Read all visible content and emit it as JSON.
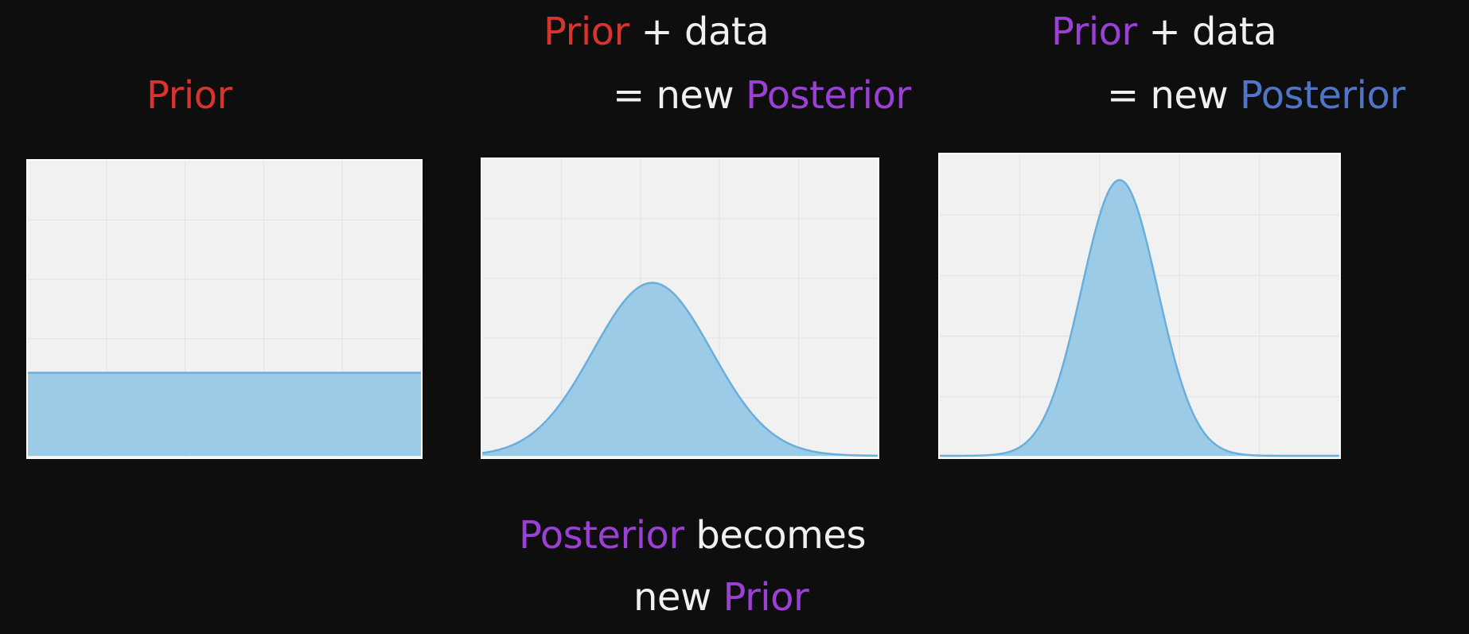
{
  "colors": {
    "prior_red": "#d8332e",
    "posterior_purple": "#9b3fd6",
    "posterior_blue": "#4f74c8",
    "text_white": "#f0f0f0",
    "background": "#0e0e0e",
    "panel_bg": "#f1f1f1",
    "fill": "#9ccbe8",
    "stroke": "#6aaedb"
  },
  "captions": {
    "prior_label": "Prior",
    "step2": {
      "prior_word": "Prior",
      "plus_data": " + data",
      "equals_new": "= new ",
      "posterior_word": "Posterior"
    },
    "step3": {
      "prior_word": "Prior",
      "plus_data": " + data",
      "equals_new": "= new ",
      "posterior_word": "Posterior"
    },
    "bottom": {
      "posterior_word": "Posterior",
      "becomes": " becomes",
      "new": "new ",
      "prior_word": "Prior"
    }
  },
  "chart_data": [
    {
      "type": "area",
      "shape": "uniform",
      "level": 0.28,
      "grid": true,
      "title": "",
      "xlabel": "",
      "ylabel": ""
    },
    {
      "type": "area",
      "shape": "gaussian",
      "mean": 0.43,
      "sd": 0.15,
      "peak": 0.58,
      "grid": true,
      "title": "",
      "xlabel": "",
      "ylabel": ""
    },
    {
      "type": "area",
      "shape": "gaussian",
      "mean": 0.45,
      "sd": 0.095,
      "peak": 0.91,
      "grid": true,
      "title": "",
      "xlabel": "",
      "ylabel": ""
    }
  ]
}
